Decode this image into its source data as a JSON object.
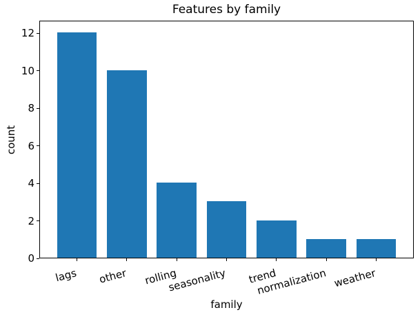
{
  "chart_data": {
    "type": "bar",
    "title": "Features by family",
    "xlabel": "family",
    "ylabel": "count",
    "categories": [
      "lags",
      "other",
      "rolling",
      "seasonality",
      "trend",
      "normalization",
      "weather"
    ],
    "values": [
      12,
      10,
      4,
      3,
      2,
      1,
      1
    ],
    "yticks": [
      0,
      2,
      4,
      6,
      8,
      10,
      12
    ],
    "ylim": [
      0,
      12.6
    ],
    "xlim": [
      -0.74,
      6.74
    ],
    "bar_width": 0.8,
    "bar_color": "#1f77b4",
    "grid": false,
    "legend": "none",
    "x_tick_label_rotation_deg": 15
  }
}
